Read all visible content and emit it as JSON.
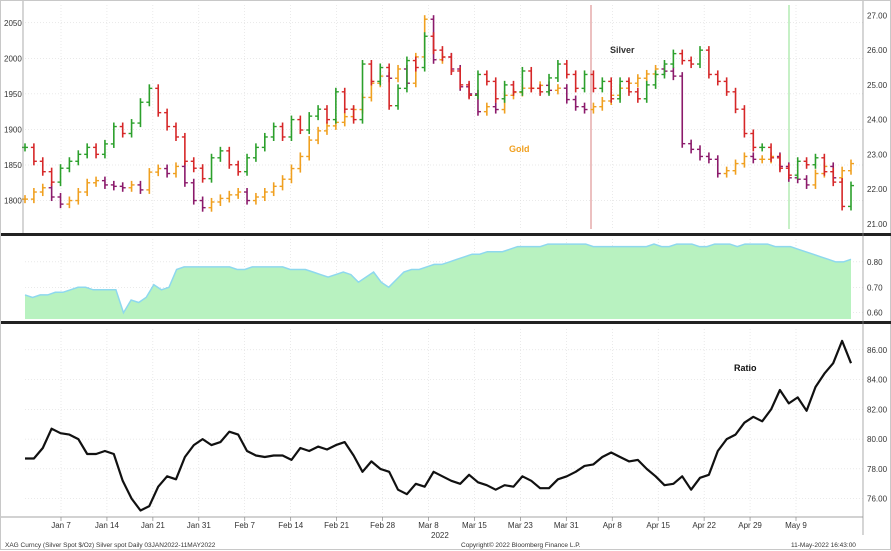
{
  "colors": {
    "silver_up": "#2ca02c",
    "silver_down": "#d62728",
    "gold_up": "#f0a020",
    "gold_down": "#8b1a6b",
    "gold_label": "#f0a020",
    "corr_fill": "#b8f2c0",
    "corr_line": "#8ed8ee",
    "ratio_line": "#111111",
    "vline_red": "#d98080",
    "vline_green": "#8ee08e"
  },
  "chart_data": [
    {
      "type": "ohlc",
      "panel": "price",
      "annotations": [
        "Silver",
        "Gold"
      ],
      "left_axis": {
        "ticks": [
          1800,
          1850,
          1900,
          1950,
          2000,
          2050
        ],
        "range": [
          1760,
          2075
        ]
      },
      "right_axis": {
        "ticks": [
          "21.00",
          "22.00",
          "23.00",
          "24.00",
          "25.00",
          "26.00",
          "27.00"
        ],
        "range": [
          20.85,
          27.3
        ]
      },
      "vertical_markers": [
        "Mar 31",
        "May 2"
      ],
      "series": [
        {
          "name": "Silver",
          "axis": "right",
          "values": [
            23.2,
            22.8,
            22.5,
            22.2,
            22.6,
            22.8,
            23.0,
            23.2,
            23.0,
            23.3,
            23.8,
            23.6,
            23.9,
            24.5,
            24.9,
            24.2,
            23.8,
            23.5,
            22.8,
            22.6,
            22.3,
            22.9,
            23.1,
            22.7,
            22.5,
            22.9,
            23.2,
            23.5,
            23.8,
            23.5,
            24.0,
            23.7,
            24.1,
            24.3,
            24.0,
            24.8,
            24.3,
            24.0,
            25.6,
            25.1,
            25.5,
            24.4,
            24.9,
            25.7,
            25.5,
            26.4,
            26.0,
            25.8,
            25.4,
            25.0,
            24.7,
            25.3,
            25.1,
            24.6,
            25.0,
            24.8,
            25.4,
            24.9,
            24.8,
            25.2,
            25.6,
            25.3,
            24.9,
            25.3,
            24.9,
            25.1,
            24.6,
            25.1,
            24.8,
            24.6,
            25.0,
            25.3,
            25.6,
            25.9,
            25.7,
            25.6,
            26.0,
            25.3,
            25.1,
            24.8,
            24.3,
            23.6,
            23.2,
            23.2,
            22.9,
            22.6,
            22.4,
            22.8,
            22.7,
            22.9,
            22.5,
            22.2,
            21.5,
            22.1
          ]
        },
        {
          "name": "Gold",
          "axis": "left",
          "values": [
            1802,
            1812,
            1818,
            1805,
            1795,
            1800,
            1812,
            1825,
            1828,
            1822,
            1820,
            1818,
            1822,
            1815,
            1840,
            1845,
            1838,
            1848,
            1825,
            1800,
            1790,
            1798,
            1803,
            1808,
            1812,
            1800,
            1805,
            1812,
            1820,
            1830,
            1845,
            1862,
            1885,
            1898,
            1905,
            1910,
            1918,
            1928,
            1945,
            1965,
            1975,
            1972,
            1985,
            1965,
            2002,
            2055,
            1998,
            2002,
            1985,
            1960,
            1950,
            1925,
            1932,
            1928,
            1948,
            1952,
            1958,
            1958,
            1962,
            1955,
            1958,
            1942,
            1932,
            1928,
            1932,
            1940,
            1948,
            1958,
            1965,
            1972,
            1978,
            1985,
            1982,
            1975,
            1880,
            1872,
            1862,
            1858,
            1838,
            1842,
            1852,
            1862,
            1858,
            1858,
            1862,
            1848,
            1832,
            1830,
            1822,
            1838,
            1848,
            1832,
            1842,
            1852
          ]
        }
      ]
    },
    {
      "type": "area",
      "panel": "correlation",
      "right_axis": {
        "ticks": [
          "0.60",
          "0.70",
          "0.80"
        ],
        "range": [
          0.575,
          0.89
        ]
      },
      "values": [
        0.67,
        0.66,
        0.67,
        0.67,
        0.68,
        0.68,
        0.69,
        0.7,
        0.7,
        0.69,
        0.69,
        0.69,
        0.69,
        0.6,
        0.65,
        0.64,
        0.66,
        0.71,
        0.69,
        0.7,
        0.77,
        0.78,
        0.78,
        0.78,
        0.78,
        0.78,
        0.78,
        0.78,
        0.77,
        0.77,
        0.78,
        0.78,
        0.78,
        0.78,
        0.78,
        0.77,
        0.77,
        0.77,
        0.76,
        0.75,
        0.74,
        0.75,
        0.76,
        0.75,
        0.72,
        0.74,
        0.76,
        0.72,
        0.7,
        0.73,
        0.76,
        0.77,
        0.77,
        0.78,
        0.79,
        0.79,
        0.8,
        0.81,
        0.82,
        0.83,
        0.83,
        0.84,
        0.84,
        0.84,
        0.85,
        0.86,
        0.86,
        0.86,
        0.86,
        0.87,
        0.87,
        0.87,
        0.87,
        0.87,
        0.87,
        0.86,
        0.86,
        0.86,
        0.86,
        0.86,
        0.86,
        0.86,
        0.86,
        0.87,
        0.86,
        0.86,
        0.87,
        0.87,
        0.87,
        0.86,
        0.86,
        0.87,
        0.87,
        0.87,
        0.86,
        0.87,
        0.87,
        0.87,
        0.87,
        0.86,
        0.86,
        0.86,
        0.85,
        0.84,
        0.83,
        0.82,
        0.81,
        0.8,
        0.8,
        0.81
      ]
    },
    {
      "type": "line",
      "panel": "ratio",
      "annotations": [
        "Ratio"
      ],
      "right_axis": {
        "ticks": [
          "76.00",
          "78.00",
          "80.00",
          "82.00",
          "84.00",
          "86.00"
        ],
        "range": [
          74.9,
          87.4
        ]
      },
      "values": [
        78.7,
        78.7,
        79.4,
        80.7,
        80.4,
        80.3,
        80.0,
        79.0,
        79.0,
        79.2,
        79.0,
        77.2,
        76.0,
        75.2,
        75.5,
        76.8,
        77.5,
        77.3,
        78.8,
        79.6,
        80.0,
        79.6,
        79.8,
        80.5,
        80.3,
        79.2,
        78.9,
        78.8,
        78.9,
        78.9,
        78.6,
        79.4,
        79.2,
        79.5,
        79.3,
        79.6,
        79.8,
        78.9,
        77.8,
        78.5,
        78.0,
        77.8,
        76.6,
        76.3,
        77.0,
        76.8,
        77.8,
        77.5,
        77.2,
        77.0,
        77.6,
        77.1,
        76.9,
        76.6,
        76.9,
        76.8,
        77.5,
        77.2,
        76.7,
        76.7,
        77.3,
        77.5,
        77.8,
        78.2,
        78.3,
        78.8,
        79.1,
        78.8,
        78.5,
        78.6,
        78.0,
        77.5,
        76.9,
        77.0,
        77.5,
        76.6,
        77.4,
        77.6,
        79.2,
        80.0,
        80.3,
        81.1,
        81.5,
        81.2,
        82.0,
        83.3,
        82.4,
        82.8,
        81.9,
        83.5,
        84.4,
        85.1,
        86.6,
        85.1
      ]
    }
  ],
  "x_axis": {
    "ticks": [
      "Jan 7",
      "Jan 14",
      "Jan 21",
      "Jan 31",
      "Feb 7",
      "Feb 14",
      "Feb 21",
      "Feb 28",
      "Mar 8",
      "Mar 15",
      "Mar 23",
      "Mar 31",
      "Apr 8",
      "Apr 15",
      "Apr 22",
      "Apr 29",
      "May 9"
    ],
    "year_label": "2022"
  },
  "footer": {
    "left": "XAG Curncy (Silver Spot $/Oz) Silver spot Daily 03JAN2022-11MAY2022",
    "center": "Copyright© 2022 Bloomberg Finance L.P.",
    "right": "11-May-2022 16:43:00"
  }
}
